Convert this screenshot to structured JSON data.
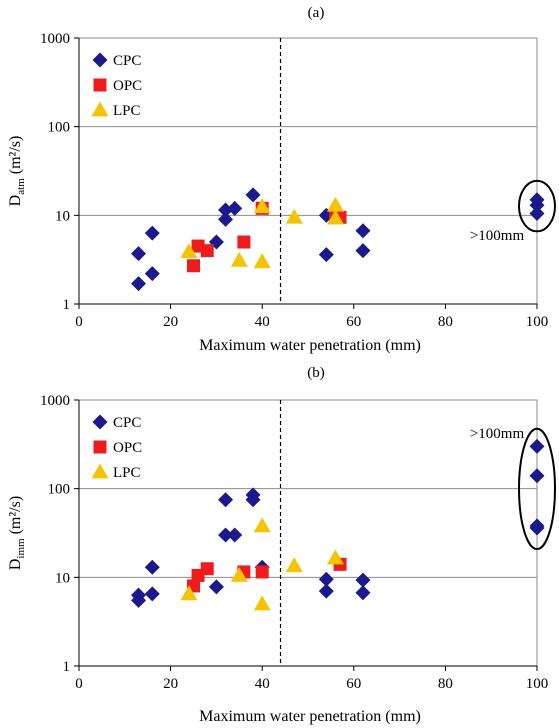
{
  "chart_data": [
    {
      "type": "scatter",
      "panel_label": "(a)",
      "xlabel": "Maximum water penetration (mm)",
      "ylabel_main": "D",
      "ylabel_sub": "atm",
      "ylabel_unit": " (m²/s)",
      "xlim": [
        0,
        100
      ],
      "xticks": [
        0,
        20,
        40,
        60,
        80,
        100
      ],
      "ylim": [
        1,
        1000
      ],
      "yscale": "log",
      "yticks": [
        1,
        10,
        100,
        1000
      ],
      "grid": "horizontal",
      "legend_position": "top-left",
      "dashed_vline_x": 44,
      "annotation": ">100mm",
      "annotation_position": "right",
      "ellipse_at_x": 100,
      "ellipse_y_range": [
        9.5,
        17
      ],
      "series": [
        {
          "name": "CPC",
          "marker": "diamond",
          "color": "#1a1a8c",
          "points": [
            [
              13,
              3.7
            ],
            [
              13,
              1.7
            ],
            [
              16,
              6.3
            ],
            [
              16,
              2.2
            ],
            [
              30,
              5.0
            ],
            [
              32,
              9.0
            ],
            [
              32,
              11.5
            ],
            [
              34,
              12.0
            ],
            [
              38,
              17.0
            ],
            [
              54,
              10.0
            ],
            [
              54,
              3.6
            ],
            [
              62,
              6.7
            ],
            [
              62,
              4.0
            ],
            [
              100,
              15.0
            ],
            [
              100,
              13.0
            ],
            [
              100,
              10.5
            ]
          ]
        },
        {
          "name": "OPC",
          "marker": "square",
          "color": "#ee1c1c",
          "points": [
            [
              25,
              2.7
            ],
            [
              26,
              4.5
            ],
            [
              28,
              4.0
            ],
            [
              36,
              5.0
            ],
            [
              40,
              12.0
            ],
            [
              56,
              10.0
            ],
            [
              57,
              9.5
            ]
          ]
        },
        {
          "name": "LPC",
          "marker": "triangle",
          "color": "#f5c400",
          "points": [
            [
              24,
              3.9
            ],
            [
              35,
              3.1
            ],
            [
              40,
              3.0
            ],
            [
              40,
              12.5
            ],
            [
              47,
              9.5
            ],
            [
              56,
              13.0
            ],
            [
              56,
              9.3
            ]
          ]
        }
      ]
    },
    {
      "type": "scatter",
      "panel_label": "(b)",
      "xlabel": "Maximum water penetration (mm)",
      "ylabel_main": "D",
      "ylabel_sub": "imm",
      "ylabel_unit": " (m²/s)",
      "xlim": [
        0,
        100
      ],
      "xticks": [
        0,
        20,
        40,
        60,
        80,
        100
      ],
      "ylim": [
        1,
        1000
      ],
      "yscale": "log",
      "yticks": [
        1,
        10,
        100,
        1000
      ],
      "grid": "horizontal",
      "legend_position": "top-left",
      "dashed_vline_x": 44,
      "annotation": ">100mm",
      "annotation_position": "top-right",
      "ellipse_at_x": 100,
      "ellipse_y_range": [
        30,
        330
      ],
      "series": [
        {
          "name": "CPC",
          "marker": "diamond",
          "color": "#1a1a8c",
          "points": [
            [
              13,
              6.3
            ],
            [
              13,
              5.5
            ],
            [
              16,
              13.0
            ],
            [
              16,
              6.5
            ],
            [
              30,
              7.8
            ],
            [
              32,
              30.0
            ],
            [
              32,
              75.0
            ],
            [
              34,
              30.0
            ],
            [
              38,
              75.0
            ],
            [
              38,
              85.0
            ],
            [
              40,
              13.0
            ],
            [
              54,
              9.5
            ],
            [
              54,
              7.0
            ],
            [
              62,
              9.3
            ],
            [
              62,
              6.7
            ],
            [
              100,
              300.0
            ],
            [
              100,
              140.0
            ],
            [
              100,
              38.0
            ],
            [
              100,
              36.0
            ]
          ]
        },
        {
          "name": "OPC",
          "marker": "square",
          "color": "#ee1c1c",
          "points": [
            [
              25,
              8.0
            ],
            [
              26,
              10.5
            ],
            [
              28,
              12.5
            ],
            [
              36,
              11.5
            ],
            [
              40,
              11.5
            ],
            [
              57,
              14.0
            ]
          ]
        },
        {
          "name": "LPC",
          "marker": "triangle",
          "color": "#f5c400",
          "points": [
            [
              24,
              6.5
            ],
            [
              35,
              10.5
            ],
            [
              40,
              38.0
            ],
            [
              40,
              5.0
            ],
            [
              47,
              13.5
            ],
            [
              56,
              16.5
            ]
          ]
        }
      ]
    }
  ]
}
